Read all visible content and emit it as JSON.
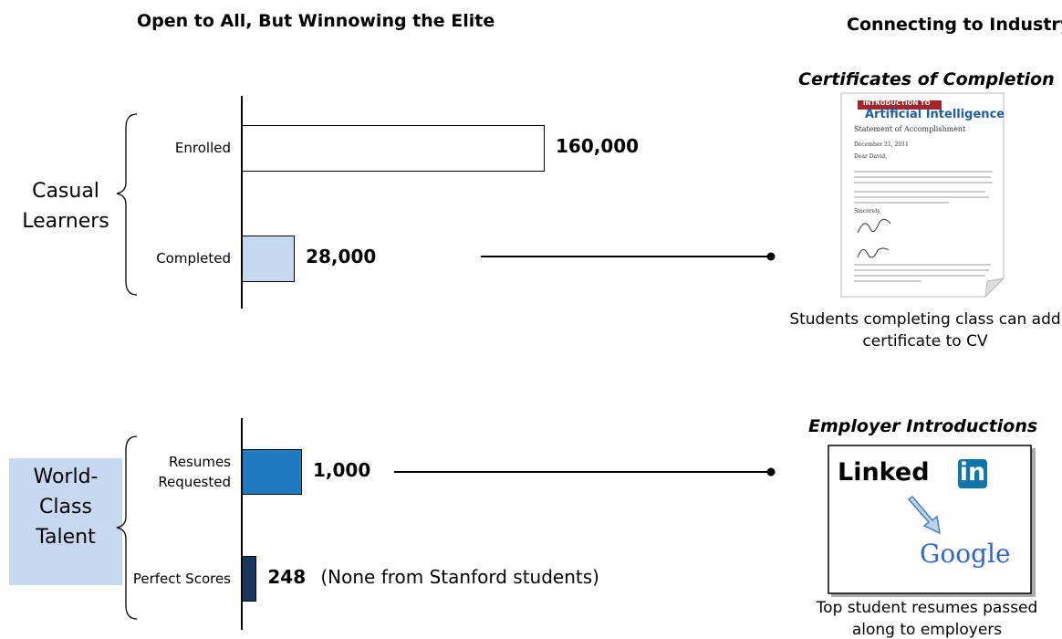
{
  "chart_data": [
    {
      "type": "bar",
      "orientation": "horizontal",
      "title": "Open to All, But Winnowing the Elite",
      "group_label": "Casual Learners",
      "categories": [
        "Enrolled",
        "Completed"
      ],
      "values": [
        160000,
        28000
      ],
      "value_labels": [
        "160,000",
        "28,000"
      ],
      "colors": [
        "#ffffff",
        "#c6d9f1"
      ]
    },
    {
      "type": "bar",
      "orientation": "horizontal",
      "group_label": "World-Class Talent",
      "categories": [
        "Resumes Requested",
        "Perfect Scores"
      ],
      "values": [
        1000,
        248
      ],
      "value_labels": [
        "1,000",
        "248"
      ],
      "colors": [
        "#1f7bc1",
        "#17375e"
      ],
      "annotation": "(None from Stanford students)"
    }
  ],
  "industry": {
    "title": "Connecting to Industry",
    "certificates": {
      "heading": "Certificates of Completion",
      "banner": "INTRODUCTION TO",
      "course": "Artificial Intelligence",
      "statement": "Statement of Accomplishment",
      "date": "December 21, 2011",
      "greeting": "Dear David,",
      "closing": "Sincerely,",
      "caption": "Students completing class can add certificate to CV"
    },
    "employers": {
      "heading": "Employer Introductions",
      "linkedin_word": "Linked",
      "linkedin_badge": "in",
      "google": "Google",
      "caption": "Top student resumes passed along to employers"
    }
  }
}
